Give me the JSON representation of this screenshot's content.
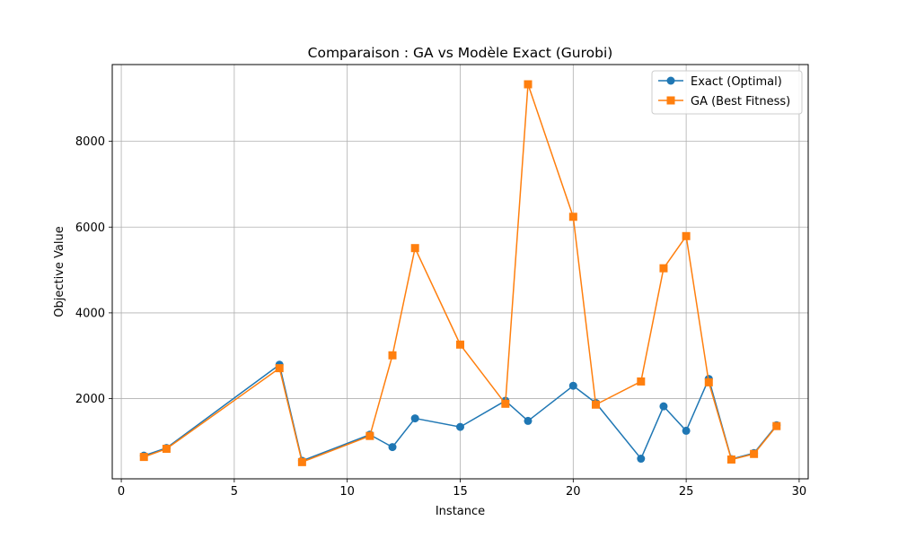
{
  "chart_data": {
    "type": "line",
    "title": "Comparaison : GA vs Modèle Exact (Gurobi)",
    "xlabel": "Instance",
    "ylabel": "Objective Value",
    "xlim": [
      -0.4,
      30.4
    ],
    "ylim": [
      130,
      9790
    ],
    "xticks": [
      0,
      5,
      10,
      15,
      20,
      25,
      30
    ],
    "yticks": [
      2000,
      4000,
      6000,
      8000
    ],
    "grid": true,
    "legend_position": "top-right",
    "series": [
      {
        "name": "Exact (Optimal)",
        "color": "#1f77b4",
        "marker": "circle",
        "x": [
          1,
          2,
          7,
          8,
          11,
          12,
          13,
          15,
          17,
          18,
          20,
          21,
          23,
          24,
          25,
          26,
          27,
          28,
          29
        ],
        "values": [
          670,
          850,
          2790,
          550,
          1160,
          870,
          1540,
          1340,
          1950,
          1480,
          2300,
          1900,
          600,
          1820,
          1250,
          2460,
          590,
          730,
          1380
        ]
      },
      {
        "name": "GA (Best Fitness)",
        "color": "#ff7f0e",
        "marker": "square",
        "x": [
          1,
          2,
          7,
          8,
          11,
          12,
          13,
          15,
          17,
          18,
          20,
          21,
          23,
          24,
          25,
          26,
          27,
          28,
          29
        ],
        "values": [
          640,
          830,
          2710,
          520,
          1130,
          3010,
          5510,
          3260,
          1880,
          9330,
          6240,
          1860,
          2400,
          5040,
          5790,
          2380,
          580,
          710,
          1360
        ]
      }
    ]
  }
}
